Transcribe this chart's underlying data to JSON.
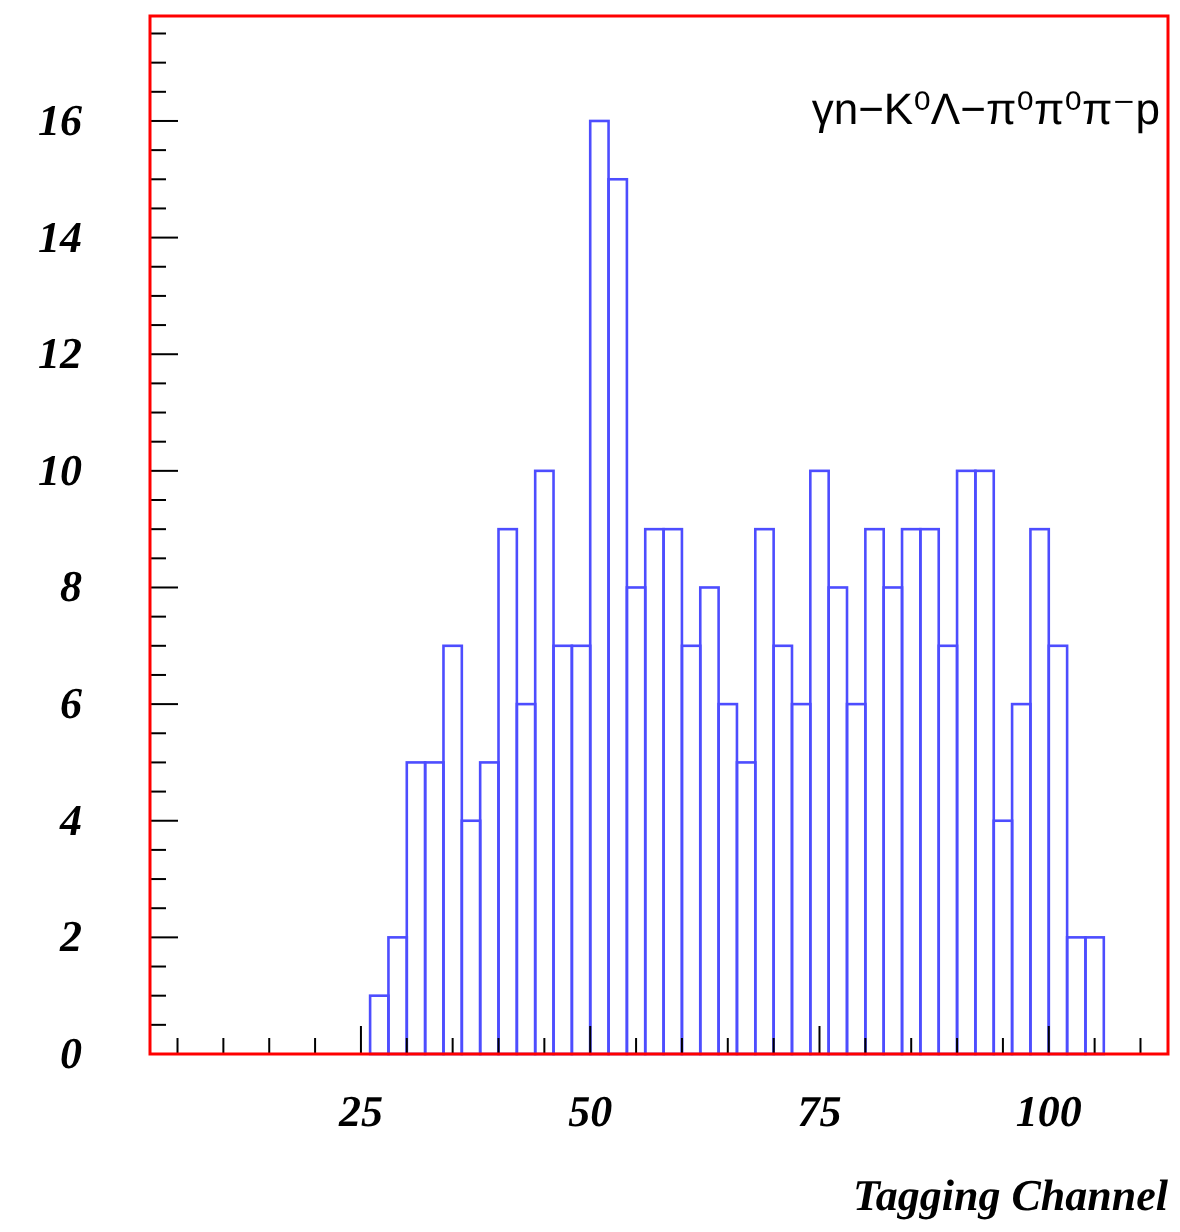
{
  "chart_data": {
    "type": "histogram",
    "xlabel": "Tagging Channel",
    "annotations": [
      "γn−K⁰Λ−π⁰π⁰π⁻p"
    ],
    "bins": [
      26,
      28,
      30,
      32,
      34,
      36,
      38,
      40,
      42,
      44,
      46,
      48,
      50,
      52,
      54,
      56,
      58,
      60,
      62,
      64,
      66,
      68,
      70,
      72,
      74,
      76,
      78,
      80,
      82,
      84,
      86,
      88,
      90,
      92,
      94,
      96,
      98,
      100,
      102,
      104,
      106
    ],
    "values": [
      1,
      2,
      5,
      5,
      7,
      4,
      5,
      9,
      6,
      10,
      7,
      7,
      16,
      15,
      8,
      9,
      9,
      7,
      8,
      6,
      5,
      9,
      7,
      6,
      10,
      8,
      6,
      9,
      8,
      9,
      9,
      7,
      10,
      10,
      4,
      6,
      9,
      7,
      2,
      2
    ],
    "color": "#4d4dff",
    "xlim": [
      2,
      113
    ],
    "ylim": [
      0,
      17.8
    ],
    "xticks": [
      {
        "value": 5,
        "label": null
      },
      {
        "value": 10,
        "label": null
      },
      {
        "value": 15,
        "label": null
      },
      {
        "value": 20,
        "label": null
      },
      25,
      {
        "value": 30,
        "label": null
      },
      {
        "value": 35,
        "label": null
      },
      {
        "value": 40,
        "label": null
      },
      {
        "value": 45,
        "label": null
      },
      50,
      {
        "value": 55,
        "label": null
      },
      {
        "value": 60,
        "label": null
      },
      {
        "value": 65,
        "label": null
      },
      {
        "value": 70,
        "label": null
      },
      75,
      {
        "value": 80,
        "label": null
      },
      {
        "value": 85,
        "label": null
      },
      {
        "value": 90,
        "label": null
      },
      {
        "value": 95,
        "label": null
      },
      100,
      {
        "value": 105,
        "label": null
      },
      {
        "value": 110,
        "label": null
      }
    ],
    "yticks": [
      0,
      {
        "value": 0.5,
        "label": null
      },
      {
        "value": 1,
        "label": null
      },
      {
        "value": 1.5,
        "label": null
      },
      2,
      {
        "value": 2.5,
        "label": null
      },
      {
        "value": 3,
        "label": null
      },
      {
        "value": 3.5,
        "label": null
      },
      4,
      {
        "value": 4.5,
        "label": null
      },
      {
        "value": 5,
        "label": null
      },
      {
        "value": 5.5,
        "label": null
      },
      6,
      {
        "value": 6.5,
        "label": null
      },
      {
        "value": 7,
        "label": null
      },
      {
        "value": 7.5,
        "label": null
      },
      8,
      {
        "value": 8.5,
        "label": null
      },
      {
        "value": 9,
        "label": null
      },
      {
        "value": 9.5,
        "label": null
      },
      10,
      {
        "value": 10.5,
        "label": null
      },
      {
        "value": 11,
        "label": null
      },
      {
        "value": 11.5,
        "label": null
      },
      12,
      {
        "value": 12.5,
        "label": null
      },
      {
        "value": 13,
        "label": null
      },
      {
        "value": 13.5,
        "label": null
      },
      14,
      {
        "value": 14.5,
        "label": null
      },
      {
        "value": 15,
        "label": null
      },
      {
        "value": 15.5,
        "label": null
      },
      16,
      {
        "value": 16.5,
        "label": null
      },
      {
        "value": 17,
        "label": null
      },
      {
        "value": 17.5,
        "label": null
      }
    ],
    "grid": false
  }
}
